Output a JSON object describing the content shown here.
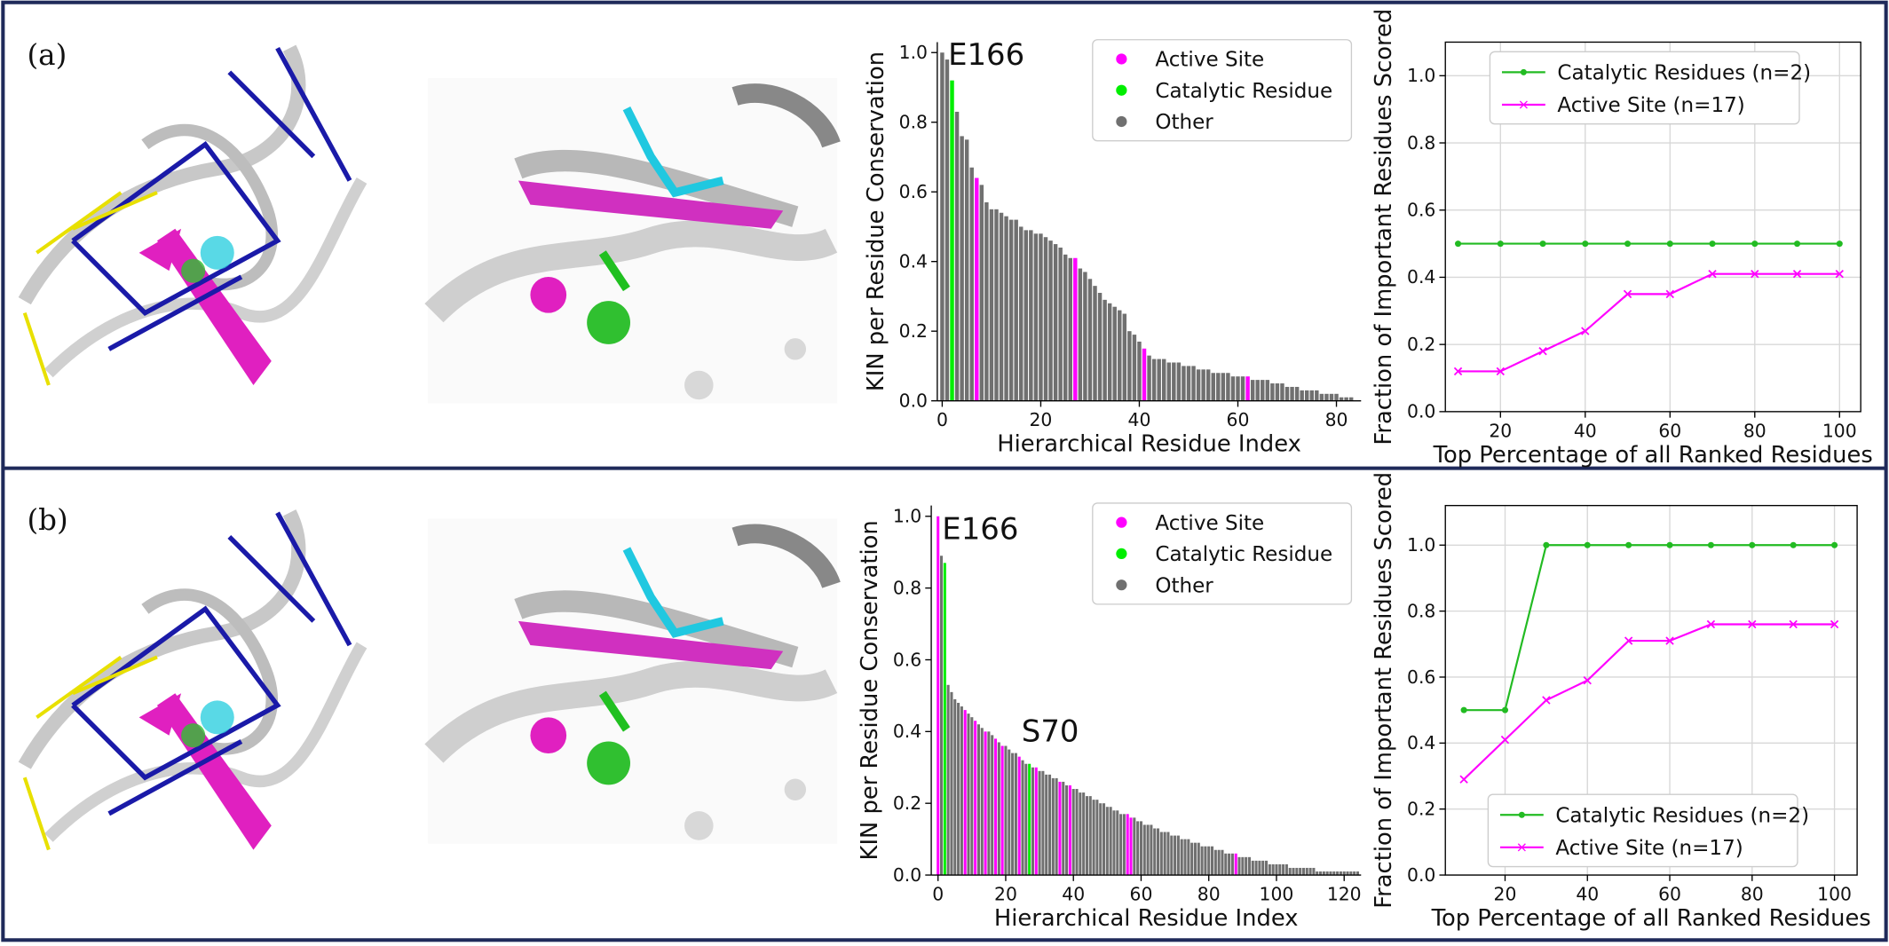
{
  "panel_labels": [
    "(a)",
    "(b)"
  ],
  "chart_data": [
    {
      "type": "bar",
      "xlabel": "Hierarchical Residue Index",
      "ylabel": "KIN per Residue Conservation",
      "annotations": [
        "E166"
      ],
      "legend": [
        {
          "name": "Active Site",
          "color": "#ff00ff"
        },
        {
          "name": "Catalytic Residue",
          "color": "#00ee00"
        },
        {
          "name": "Other",
          "color": "#707070"
        }
      ],
      "legend_loc": "upper right",
      "values": [
        1.0,
        0.98,
        0.92,
        0.83,
        0.76,
        0.75,
        0.67,
        0.64,
        0.62,
        0.57,
        0.55,
        0.55,
        0.54,
        0.53,
        0.52,
        0.52,
        0.5,
        0.49,
        0.49,
        0.48,
        0.48,
        0.47,
        0.46,
        0.45,
        0.44,
        0.42,
        0.41,
        0.41,
        0.38,
        0.37,
        0.35,
        0.33,
        0.31,
        0.29,
        0.28,
        0.27,
        0.26,
        0.25,
        0.2,
        0.19,
        0.17,
        0.15,
        0.13,
        0.12,
        0.12,
        0.12,
        0.11,
        0.11,
        0.11,
        0.1,
        0.1,
        0.1,
        0.09,
        0.09,
        0.09,
        0.08,
        0.08,
        0.08,
        0.08,
        0.07,
        0.07,
        0.07,
        0.07,
        0.06,
        0.06,
        0.06,
        0.06,
        0.05,
        0.05,
        0.05,
        0.04,
        0.04,
        0.04,
        0.03,
        0.03,
        0.03,
        0.03,
        0.02,
        0.02,
        0.02,
        0.02,
        0.01,
        0.01,
        0.01
      ],
      "colors": [
        "#707070",
        "#707070",
        "#00ee00",
        "#707070",
        "#707070",
        "#707070",
        "#707070",
        "#ff00ff",
        "#707070",
        "#707070",
        "#707070",
        "#707070",
        "#707070",
        "#707070",
        "#707070",
        "#707070",
        "#707070",
        "#707070",
        "#707070",
        "#707070",
        "#707070",
        "#707070",
        "#707070",
        "#707070",
        "#707070",
        "#707070",
        "#707070",
        "#ff00ff",
        "#707070",
        "#707070",
        "#707070",
        "#707070",
        "#707070",
        "#707070",
        "#707070",
        "#707070",
        "#707070",
        "#707070",
        "#707070",
        "#707070",
        "#707070",
        "#ff00ff",
        "#707070",
        "#707070",
        "#707070",
        "#707070",
        "#707070",
        "#707070",
        "#707070",
        "#707070",
        "#707070",
        "#707070",
        "#707070",
        "#707070",
        "#707070",
        "#707070",
        "#707070",
        "#707070",
        "#707070",
        "#707070",
        "#707070",
        "#707070",
        "#ff00ff",
        "#707070",
        "#707070",
        "#707070",
        "#707070",
        "#707070",
        "#707070",
        "#707070",
        "#707070",
        "#707070",
        "#707070",
        "#707070",
        "#707070",
        "#707070",
        "#707070",
        "#707070",
        "#707070",
        "#707070",
        "#707070",
        "#707070",
        "#707070",
        "#707070"
      ],
      "xlim": [
        -1,
        85
      ],
      "ylim": [
        0,
        1.03
      ],
      "xticks": [
        0,
        20,
        40,
        60,
        80
      ],
      "yticks": [
        {
          "value": 0,
          "label": "0.0"
        },
        {
          "value": 0.2,
          "label": "0.2"
        },
        {
          "value": 0.4,
          "label": "0.4"
        },
        {
          "value": 0.6,
          "label": "0.6"
        },
        {
          "value": 0.8,
          "label": "0.8"
        },
        {
          "value": 1,
          "label": "1.0"
        }
      ]
    },
    {
      "type": "line",
      "xlabel": "Top Percentage of all Ranked Residues",
      "ylabel": "Fraction of Important Residues Scored",
      "grid": true,
      "legend_loc": "upper center",
      "x": [
        10,
        20,
        30,
        40,
        50,
        60,
        70,
        80,
        90,
        100
      ],
      "series": [
        {
          "name": "Catalytic Residues (n=2)",
          "color": "#22bb22",
          "marker": "o",
          "values": [
            0.5,
            0.5,
            0.5,
            0.5,
            0.5,
            0.5,
            0.5,
            0.5,
            0.5,
            0.5
          ]
        },
        {
          "name": "Active Site (n=17)",
          "color": "#ff00ff",
          "marker": "x",
          "values": [
            0.12,
            0.12,
            0.18,
            0.24,
            0.35,
            0.35,
            0.41,
            0.41,
            0.41,
            0.41
          ]
        }
      ],
      "xlim": [
        7,
        105
      ],
      "ylim": [
        0,
        1.1
      ],
      "xticks": [
        20,
        40,
        60,
        80,
        100
      ],
      "yticks": [
        {
          "value": 0,
          "label": "0.0"
        },
        {
          "value": 0.2,
          "label": "0.2"
        },
        {
          "value": 0.4,
          "label": "0.4"
        },
        {
          "value": 0.6,
          "label": "0.6"
        },
        {
          "value": 0.8,
          "label": "0.8"
        },
        {
          "value": 1,
          "label": "1.0"
        }
      ]
    },
    {
      "type": "bar",
      "xlabel": "Hierarchical Residue Index",
      "ylabel": "KIN per Residue Conservation",
      "annotations": [
        "E166",
        "S70"
      ],
      "legend": [
        {
          "name": "Active Site",
          "color": "#ff00ff"
        },
        {
          "name": "Catalytic Residue",
          "color": "#00ee00"
        },
        {
          "name": "Other",
          "color": "#707070"
        }
      ],
      "legend_loc": "upper right",
      "values": [
        1.0,
        0.89,
        0.87,
        0.53,
        0.51,
        0.49,
        0.48,
        0.47,
        0.46,
        0.45,
        0.44,
        0.43,
        0.42,
        0.41,
        0.4,
        0.4,
        0.39,
        0.38,
        0.37,
        0.36,
        0.36,
        0.35,
        0.34,
        0.34,
        0.33,
        0.32,
        0.31,
        0.31,
        0.3,
        0.3,
        0.29,
        0.29,
        0.28,
        0.28,
        0.27,
        0.27,
        0.26,
        0.26,
        0.25,
        0.25,
        0.24,
        0.24,
        0.23,
        0.23,
        0.22,
        0.22,
        0.21,
        0.21,
        0.2,
        0.2,
        0.19,
        0.19,
        0.18,
        0.18,
        0.17,
        0.17,
        0.17,
        0.16,
        0.16,
        0.15,
        0.15,
        0.14,
        0.14,
        0.14,
        0.13,
        0.13,
        0.12,
        0.12,
        0.12,
        0.11,
        0.11,
        0.11,
        0.1,
        0.1,
        0.1,
        0.09,
        0.09,
        0.09,
        0.08,
        0.08,
        0.08,
        0.08,
        0.07,
        0.07,
        0.07,
        0.06,
        0.06,
        0.06,
        0.06,
        0.05,
        0.05,
        0.05,
        0.05,
        0.04,
        0.04,
        0.04,
        0.04,
        0.04,
        0.03,
        0.03,
        0.03,
        0.03,
        0.03,
        0.03,
        0.02,
        0.02,
        0.02,
        0.02,
        0.02,
        0.02,
        0.02,
        0.02,
        0.01,
        0.01,
        0.01,
        0.01,
        0.01,
        0.01,
        0.01,
        0.01,
        0.01,
        0.01,
        0.01,
        0.01,
        0.01
      ],
      "colors": [
        "#ff00ff",
        "#707070",
        "#00ee00",
        "#707070",
        "#707070",
        "#707070",
        "#707070",
        "#707070",
        "#ff00ff",
        "#707070",
        "#707070",
        "#ff00ff",
        "#707070",
        "#707070",
        "#ff00ff",
        "#707070",
        "#707070",
        "#ff00ff",
        "#707070",
        "#ff00ff",
        "#707070",
        "#707070",
        "#707070",
        "#707070",
        "#ff00ff",
        "#707070",
        "#707070",
        "#00ee00",
        "#707070",
        "#ff00ff",
        "#707070",
        "#707070",
        "#707070",
        "#707070",
        "#707070",
        "#707070",
        "#ff00ff",
        "#707070",
        "#707070",
        "#ff00ff",
        "#707070",
        "#707070",
        "#707070",
        "#707070",
        "#707070",
        "#707070",
        "#707070",
        "#707070",
        "#707070",
        "#707070",
        "#707070",
        "#707070",
        "#707070",
        "#707070",
        "#707070",
        "#707070",
        "#ff00ff",
        "#ff00ff",
        "#707070",
        "#707070",
        "#707070",
        "#707070",
        "#707070",
        "#707070",
        "#707070",
        "#707070",
        "#707070",
        "#707070",
        "#707070",
        "#707070",
        "#707070",
        "#707070",
        "#707070",
        "#707070",
        "#707070",
        "#707070",
        "#707070",
        "#707070",
        "#707070",
        "#707070",
        "#707070",
        "#707070",
        "#707070",
        "#707070",
        "#707070",
        "#707070",
        "#707070",
        "#707070",
        "#ff00ff",
        "#707070",
        "#707070",
        "#707070",
        "#707070",
        "#707070",
        "#707070",
        "#707070",
        "#707070",
        "#707070",
        "#707070",
        "#707070",
        "#707070",
        "#707070",
        "#707070",
        "#707070",
        "#707070",
        "#707070",
        "#707070",
        "#707070",
        "#707070",
        "#707070",
        "#707070",
        "#707070",
        "#707070",
        "#707070",
        "#707070",
        "#707070",
        "#707070",
        "#707070",
        "#707070",
        "#707070",
        "#707070",
        "#707070",
        "#707070",
        "#707070",
        "#707070"
      ],
      "xlim": [
        -2,
        125
      ],
      "ylim": [
        0,
        1.03
      ],
      "xticks": [
        0,
        20,
        40,
        60,
        80,
        100,
        120
      ],
      "yticks": [
        {
          "value": 0,
          "label": "0.0"
        },
        {
          "value": 0.2,
          "label": "0.2"
        },
        {
          "value": 0.4,
          "label": "0.4"
        },
        {
          "value": 0.6,
          "label": "0.6"
        },
        {
          "value": 0.8,
          "label": "0.8"
        },
        {
          "value": 1,
          "label": "1.0"
        }
      ]
    },
    {
      "type": "line",
      "xlabel": "Top Percentage of all Ranked Residues",
      "ylabel": "Fraction of Important Residues Scored",
      "grid": true,
      "legend_loc": "lower center",
      "x": [
        10,
        20,
        30,
        40,
        50,
        60,
        70,
        80,
        90,
        100
      ],
      "series": [
        {
          "name": "Catalytic Residues (n=2)",
          "color": "#22bb22",
          "marker": "o",
          "values": [
            0.5,
            0.5,
            1.0,
            1.0,
            1.0,
            1.0,
            1.0,
            1.0,
            1.0,
            1.0
          ]
        },
        {
          "name": "Active Site (n=17)",
          "color": "#ff00ff",
          "marker": "x",
          "values": [
            0.29,
            0.41,
            0.53,
            0.59,
            0.71,
            0.71,
            0.76,
            0.76,
            0.76,
            0.76
          ]
        }
      ],
      "xlim": [
        5.5,
        105.5
      ],
      "ylim": [
        0,
        1.12
      ],
      "xticks": [
        20,
        40,
        60,
        80,
        100
      ],
      "yticks": [
        {
          "value": 0,
          "label": "0.0"
        },
        {
          "value": 0.2,
          "label": "0.2"
        },
        {
          "value": 0.4,
          "label": "0.4"
        },
        {
          "value": 0.6,
          "label": "0.6"
        },
        {
          "value": 0.8,
          "label": "0.8"
        },
        {
          "value": 1,
          "label": "1.0"
        }
      ]
    }
  ]
}
